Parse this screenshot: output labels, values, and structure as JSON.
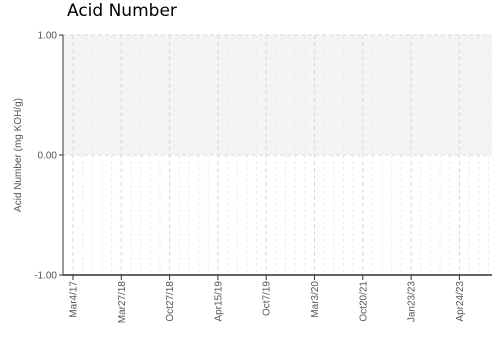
{
  "title": "Acid Number",
  "chart_data": {
    "type": "line",
    "title": "Acid Number",
    "xlabel": "",
    "ylabel": "Acid Number (mg KOH/g)",
    "ylim": [
      -1.0,
      1.0
    ],
    "y_ticks": [
      "1.00",
      "0.00",
      "-1.00"
    ],
    "x_ticks": [
      "Mar4/17",
      "Mar27/18",
      "Oct27/18",
      "Apr15/19",
      "Oct7/19",
      "Mar3/20",
      "Oct20/21",
      "Jan23/23",
      "Apr24/23"
    ],
    "series": [],
    "grid": true,
    "shaded_band": [
      0.0,
      1.0
    ],
    "colors": {
      "band": "#f4f4f4",
      "grid": "#d8d8d8",
      "axis": "#333333"
    }
  }
}
